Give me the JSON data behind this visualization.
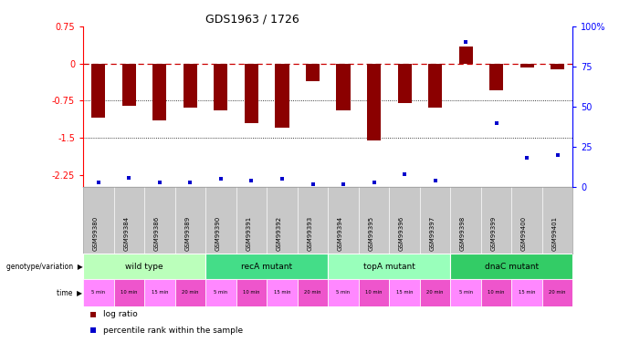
{
  "title": "GDS1963 / 1726",
  "samples": [
    "GSM99380",
    "GSM99384",
    "GSM99386",
    "GSM99389",
    "GSM99390",
    "GSM99391",
    "GSM99392",
    "GSM99393",
    "GSM99394",
    "GSM99395",
    "GSM99396",
    "GSM99397",
    "GSM99398",
    "GSM99399",
    "GSM99400",
    "GSM99401"
  ],
  "log_ratio": [
    -1.1,
    -0.85,
    -1.15,
    -0.9,
    -0.95,
    -1.2,
    -1.3,
    -0.35,
    -0.95,
    -1.55,
    -0.8,
    -0.9,
    0.35,
    -0.55,
    -0.08,
    -0.12
  ],
  "percentile": [
    3,
    6,
    3,
    3,
    5,
    4,
    5,
    2,
    2,
    3,
    8,
    4,
    90,
    40,
    18,
    20
  ],
  "bar_color": "#8B0000",
  "dot_color": "#0000CC",
  "dash_color": "#CC0000",
  "ylim_left": [
    -2.5,
    0.75
  ],
  "ylim_right": [
    0,
    100
  ],
  "left_ticks": [
    0.75,
    0,
    -0.75,
    -1.5,
    -2.25
  ],
  "right_ticks": [
    100,
    75,
    50,
    25,
    0
  ],
  "genotype_groups": [
    {
      "label": "wild type",
      "start": 0,
      "end": 4,
      "color": "#BBFFBB"
    },
    {
      "label": "recA mutant",
      "start": 4,
      "end": 8,
      "color": "#44DD88"
    },
    {
      "label": "topA mutant",
      "start": 8,
      "end": 12,
      "color": "#99FFBB"
    },
    {
      "label": "dnaC mutant",
      "start": 12,
      "end": 16,
      "color": "#33CC66"
    }
  ],
  "time_labels": [
    "5 min",
    "10 min",
    "15 min",
    "20 min",
    "5 min",
    "10 min",
    "15 min",
    "20 min",
    "5 min",
    "10 min",
    "15 min",
    "20 min",
    "5 min",
    "10 min",
    "15 min",
    "20 min"
  ],
  "time_color_a": "#FF88FF",
  "time_color_b": "#EE55CC",
  "genotype_label": "genotype/variation",
  "time_label": "time",
  "legend_red": "log ratio",
  "legend_blue": "percentile rank within the sample",
  "bg": "#FFFFFF",
  "sample_bg": "#C8C8C8"
}
